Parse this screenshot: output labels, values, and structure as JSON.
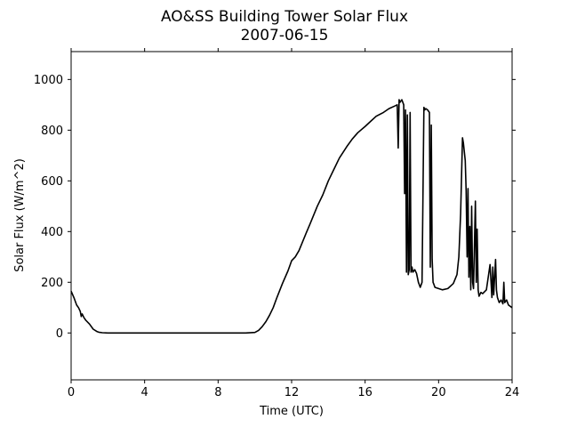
{
  "chart_data": {
    "type": "line",
    "title": "AO&SS Building Tower Solar Flux",
    "subtitle": "2007-06-15",
    "xlabel": "Time (UTC)",
    "ylabel": "Solar Flux (W/m^2)",
    "xlim": [
      0,
      24
    ],
    "ylim": [
      -185,
      1110
    ],
    "xticks": [
      0,
      4,
      8,
      12,
      16,
      20,
      24
    ],
    "yticks": [
      0,
      200,
      400,
      600,
      800,
      1000
    ],
    "grid": false,
    "legend": "none",
    "line_color": "#000000",
    "series": [
      {
        "x": [
          0,
          0.15,
          0.3,
          0.4,
          0.5,
          0.55,
          0.6,
          0.7,
          0.8,
          1.0,
          1.2,
          1.4,
          1.5,
          1.7,
          2.0,
          2.5,
          3,
          4,
          5,
          6,
          7,
          8,
          9,
          9.5,
          10,
          10.2,
          10.4,
          10.6,
          10.8,
          11,
          11.2,
          11.5,
          11.8,
          12,
          12.2,
          12.4,
          12.6,
          12.8,
          13,
          13.2,
          13.4,
          13.7,
          14,
          14.3,
          14.6,
          15,
          15.3,
          15.6,
          16,
          16.3,
          16.6,
          17,
          17.3,
          17.6,
          17.75,
          17.8,
          17.85,
          17.9,
          18.0,
          18.1,
          18.15,
          18.2,
          18.25,
          18.3,
          18.35,
          18.4,
          18.45,
          18.5,
          18.55,
          18.6,
          18.7,
          18.8,
          18.9,
          19.0,
          19.1,
          19.2,
          19.25,
          19.3,
          19.4,
          19.5,
          19.55,
          19.6,
          19.65,
          19.7,
          19.75,
          19.8,
          20.0,
          20.2,
          20.5,
          20.8,
          21.0,
          21.1,
          21.2,
          21.3,
          21.35,
          21.45,
          21.5,
          21.55,
          21.6,
          21.65,
          21.7,
          21.75,
          21.8,
          21.85,
          21.9,
          22.0,
          22.05,
          22.1,
          22.15,
          22.2,
          22.3,
          22.4,
          22.6,
          22.8,
          22.9,
          22.95,
          23.0,
          23.1,
          23.15,
          23.2,
          23.3,
          23.4,
          23.5,
          23.55,
          23.6,
          23.7,
          23.8,
          24.0
        ],
        "y": [
          165,
          140,
          110,
          100,
          85,
          65,
          75,
          60,
          50,
          35,
          15,
          6,
          3,
          1,
          0,
          0,
          0,
          0,
          0,
          0,
          0,
          0,
          0,
          0,
          2,
          10,
          25,
          45,
          70,
          100,
          140,
          195,
          245,
          285,
          300,
          325,
          360,
          395,
          430,
          465,
          500,
          545,
          600,
          645,
          690,
          735,
          765,
          790,
          815,
          835,
          855,
          870,
          885,
          895,
          900,
          730,
          920,
          910,
          920,
          900,
          550,
          880,
          240,
          860,
          230,
          250,
          870,
          240,
          260,
          240,
          250,
          235,
          200,
          180,
          200,
          890,
          880,
          885,
          880,
          870,
          260,
          820,
          290,
          200,
          190,
          180,
          175,
          170,
          175,
          195,
          230,
          300,
          470,
          770,
          750,
          680,
          560,
          300,
          570,
          220,
          420,
          170,
          500,
          200,
          175,
          520,
          200,
          410,
          170,
          145,
          160,
          155,
          170,
          270,
          140,
          260,
          150,
          290,
          170,
          140,
          120,
          130,
          115,
          200,
          120,
          130,
          110,
          100
        ]
      }
    ]
  }
}
